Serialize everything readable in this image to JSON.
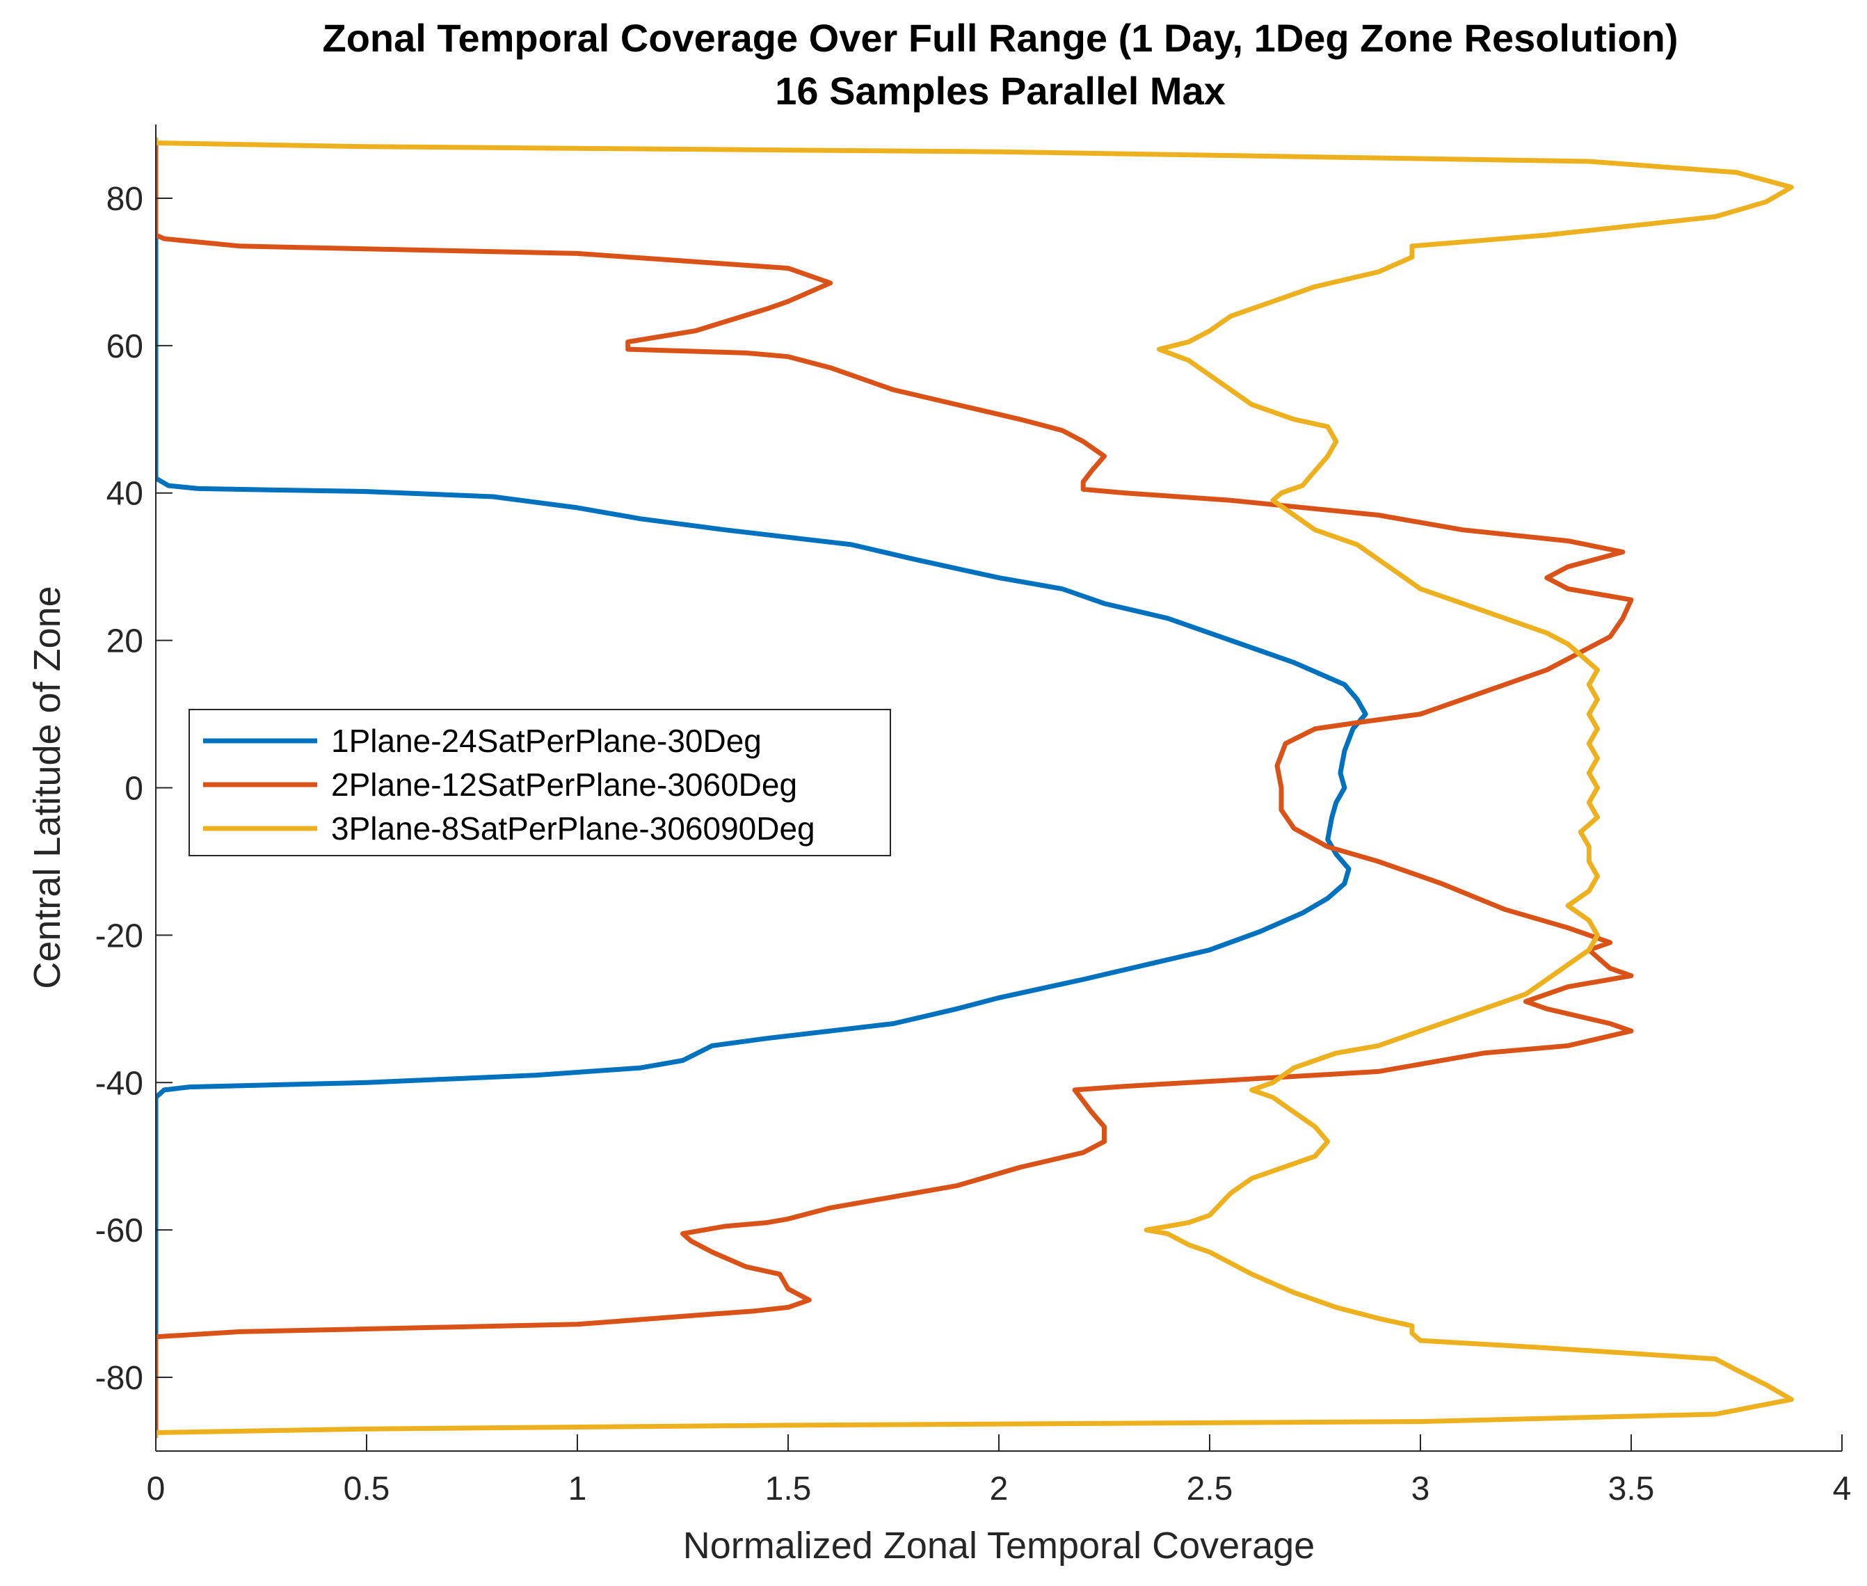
{
  "chart_data": {
    "type": "line",
    "title": "Zonal Temporal Coverage Over Full Range (1 Day, 1Deg Zone Resolution)",
    "subtitle": "16 Samples Parallel Max",
    "xlabel": "Normalized Zonal Temporal Coverage",
    "ylabel": "Central Latitude of Zone",
    "xlim": [
      0,
      4
    ],
    "ylim": [
      -90,
      90
    ],
    "xticks": [
      0,
      0.5,
      1,
      1.5,
      2,
      2.5,
      3,
      3.5,
      4
    ],
    "xtick_labels": [
      "0",
      "0.5",
      "1",
      "1.5",
      "2",
      "2.5",
      "3",
      "3.5",
      "4"
    ],
    "yticks": [
      -80,
      -60,
      -40,
      -20,
      0,
      20,
      40,
      60,
      80
    ],
    "ytick_labels": [
      "-80",
      "-60",
      "-40",
      "-20",
      "0",
      "20",
      "40",
      "60",
      "80"
    ],
    "legend_position": "center-left",
    "series": [
      {
        "name": "1Plane-24SatPerPlane-30Deg",
        "color": "#0072BD",
        "points": [
          [
            0,
            -88
          ],
          [
            0,
            -74
          ],
          [
            0,
            -42
          ],
          [
            0.02,
            -41
          ],
          [
            0.08,
            -40.6
          ],
          [
            0.5,
            -40
          ],
          [
            0.9,
            -39
          ],
          [
            1.15,
            -38
          ],
          [
            1.25,
            -37
          ],
          [
            1.32,
            -35
          ],
          [
            1.45,
            -34
          ],
          [
            1.75,
            -32
          ],
          [
            1.9,
            -30
          ],
          [
            2.0,
            -28.5
          ],
          [
            2.2,
            -26
          ],
          [
            2.35,
            -24
          ],
          [
            2.5,
            -22
          ],
          [
            2.62,
            -19.5
          ],
          [
            2.72,
            -17
          ],
          [
            2.78,
            -15
          ],
          [
            2.82,
            -13
          ],
          [
            2.83,
            -11
          ],
          [
            2.8,
            -9
          ],
          [
            2.78,
            -7
          ],
          [
            2.79,
            -4
          ],
          [
            2.8,
            -2
          ],
          [
            2.82,
            0
          ],
          [
            2.81,
            2
          ],
          [
            2.82,
            5
          ],
          [
            2.84,
            8
          ],
          [
            2.87,
            10
          ],
          [
            2.85,
            12
          ],
          [
            2.82,
            14
          ],
          [
            2.7,
            17
          ],
          [
            2.55,
            20
          ],
          [
            2.4,
            23
          ],
          [
            2.25,
            25
          ],
          [
            2.15,
            27
          ],
          [
            2.0,
            28.5
          ],
          [
            1.8,
            31
          ],
          [
            1.65,
            33
          ],
          [
            1.5,
            34
          ],
          [
            1.35,
            35
          ],
          [
            1.15,
            36.5
          ],
          [
            1.0,
            38
          ],
          [
            0.8,
            39.5
          ],
          [
            0.5,
            40.2
          ],
          [
            0.1,
            40.6
          ],
          [
            0.03,
            41
          ],
          [
            0,
            42
          ],
          [
            0,
            74
          ],
          [
            0,
            88
          ]
        ]
      },
      {
        "name": "2Plane-12SatPerPlane-3060Deg",
        "color": "#D95319",
        "points": [
          [
            0,
            -88
          ],
          [
            0,
            -74.5
          ],
          [
            0.2,
            -73.8
          ],
          [
            1.0,
            -72.8
          ],
          [
            1.3,
            -71.5
          ],
          [
            1.42,
            -71
          ],
          [
            1.5,
            -70.5
          ],
          [
            1.55,
            -69.5
          ],
          [
            1.5,
            -68
          ],
          [
            1.48,
            -66
          ],
          [
            1.4,
            -65
          ],
          [
            1.32,
            -63
          ],
          [
            1.27,
            -61.5
          ],
          [
            1.25,
            -60.5
          ],
          [
            1.3,
            -60
          ],
          [
            1.35,
            -59.5
          ],
          [
            1.45,
            -59
          ],
          [
            1.5,
            -58.5
          ],
          [
            1.6,
            -57
          ],
          [
            1.75,
            -55.5
          ],
          [
            1.9,
            -54
          ],
          [
            2.05,
            -51.5
          ],
          [
            2.2,
            -49.5
          ],
          [
            2.25,
            -48
          ],
          [
            2.25,
            -46
          ],
          [
            2.22,
            -44
          ],
          [
            2.2,
            -42.5
          ],
          [
            2.18,
            -41
          ],
          [
            2.3,
            -40.5
          ],
          [
            2.6,
            -39.5
          ],
          [
            2.9,
            -38.5
          ],
          [
            3.15,
            -36
          ],
          [
            3.35,
            -35
          ],
          [
            3.5,
            -33
          ],
          [
            3.45,
            -32
          ],
          [
            3.3,
            -30
          ],
          [
            3.25,
            -29
          ],
          [
            3.35,
            -27
          ],
          [
            3.5,
            -25.5
          ],
          [
            3.45,
            -24.5
          ],
          [
            3.4,
            -22
          ],
          [
            3.45,
            -21
          ],
          [
            3.35,
            -19
          ],
          [
            3.2,
            -16.5
          ],
          [
            3.05,
            -13
          ],
          [
            2.9,
            -10
          ],
          [
            2.78,
            -8
          ],
          [
            2.7,
            -5.5
          ],
          [
            2.67,
            -3
          ],
          [
            2.67,
            0
          ],
          [
            2.66,
            3
          ],
          [
            2.68,
            6
          ],
          [
            2.75,
            8
          ],
          [
            2.87,
            9
          ],
          [
            3.0,
            10
          ],
          [
            3.15,
            13
          ],
          [
            3.3,
            16
          ],
          [
            3.4,
            19
          ],
          [
            3.45,
            20.5
          ],
          [
            3.48,
            23
          ],
          [
            3.5,
            25.5
          ],
          [
            3.45,
            26
          ],
          [
            3.35,
            27
          ],
          [
            3.3,
            28.5
          ],
          [
            3.35,
            30
          ],
          [
            3.48,
            32
          ],
          [
            3.35,
            33.5
          ],
          [
            3.1,
            35
          ],
          [
            2.9,
            37
          ],
          [
            2.55,
            39
          ],
          [
            2.3,
            40
          ],
          [
            2.2,
            40.5
          ],
          [
            2.2,
            41.5
          ],
          [
            2.22,
            43
          ],
          [
            2.25,
            45
          ],
          [
            2.2,
            47
          ],
          [
            2.15,
            48.5
          ],
          [
            2.05,
            50
          ],
          [
            1.9,
            52
          ],
          [
            1.75,
            54
          ],
          [
            1.6,
            57
          ],
          [
            1.5,
            58.5
          ],
          [
            1.4,
            59
          ],
          [
            1.12,
            59.5
          ],
          [
            1.12,
            60.5
          ],
          [
            1.28,
            62
          ],
          [
            1.45,
            65
          ],
          [
            1.5,
            66
          ],
          [
            1.6,
            68.5
          ],
          [
            1.5,
            70.5
          ],
          [
            1.25,
            71.5
          ],
          [
            1.0,
            72.5
          ],
          [
            0.2,
            73.5
          ],
          [
            0.02,
            74.5
          ],
          [
            0,
            75
          ],
          [
            0,
            88
          ]
        ]
      },
      {
        "name": "3Plane-8SatPerPlane-306090Deg",
        "color": "#EDB120",
        "points": [
          [
            0,
            -88
          ],
          [
            0,
            -87.5
          ],
          [
            0.5,
            -87
          ],
          [
            1.5,
            -86.5
          ],
          [
            3.0,
            -86
          ],
          [
            3.7,
            -85
          ],
          [
            3.88,
            -83
          ],
          [
            3.82,
            -81
          ],
          [
            3.75,
            -79
          ],
          [
            3.7,
            -77.5
          ],
          [
            3.3,
            -76
          ],
          [
            3.0,
            -75
          ],
          [
            2.98,
            -74
          ],
          [
            2.98,
            -73
          ],
          [
            2.9,
            -72
          ],
          [
            2.8,
            -70.5
          ],
          [
            2.7,
            -68.5
          ],
          [
            2.6,
            -66
          ],
          [
            2.5,
            -63
          ],
          [
            2.45,
            -62
          ],
          [
            2.4,
            -60.5
          ],
          [
            2.35,
            -60
          ],
          [
            2.45,
            -59
          ],
          [
            2.5,
            -58
          ],
          [
            2.55,
            -55
          ],
          [
            2.6,
            -53
          ],
          [
            2.7,
            -51
          ],
          [
            2.75,
            -50
          ],
          [
            2.78,
            -48
          ],
          [
            2.75,
            -46
          ],
          [
            2.7,
            -44
          ],
          [
            2.65,
            -42
          ],
          [
            2.6,
            -41
          ],
          [
            2.65,
            -40
          ],
          [
            2.7,
            -38
          ],
          [
            2.8,
            -36
          ],
          [
            2.9,
            -35
          ],
          [
            3.0,
            -33
          ],
          [
            3.1,
            -31
          ],
          [
            3.2,
            -29
          ],
          [
            3.25,
            -28
          ],
          [
            3.3,
            -26
          ],
          [
            3.35,
            -24
          ],
          [
            3.4,
            -22
          ],
          [
            3.42,
            -20
          ],
          [
            3.4,
            -18
          ],
          [
            3.35,
            -16
          ],
          [
            3.4,
            -14
          ],
          [
            3.42,
            -12
          ],
          [
            3.4,
            -10
          ],
          [
            3.4,
            -8
          ],
          [
            3.38,
            -6
          ],
          [
            3.42,
            -4
          ],
          [
            3.4,
            -2
          ],
          [
            3.42,
            0
          ],
          [
            3.4,
            2
          ],
          [
            3.42,
            4
          ],
          [
            3.4,
            6
          ],
          [
            3.42,
            8
          ],
          [
            3.4,
            10
          ],
          [
            3.42,
            12
          ],
          [
            3.4,
            14
          ],
          [
            3.42,
            16
          ],
          [
            3.38,
            18
          ],
          [
            3.35,
            19.5
          ],
          [
            3.3,
            21
          ],
          [
            3.2,
            23
          ],
          [
            3.1,
            25
          ],
          [
            3.0,
            27
          ],
          [
            2.95,
            29
          ],
          [
            2.9,
            31
          ],
          [
            2.85,
            33
          ],
          [
            2.75,
            35
          ],
          [
            2.7,
            37
          ],
          [
            2.65,
            39
          ],
          [
            2.67,
            40
          ],
          [
            2.72,
            41
          ],
          [
            2.75,
            43
          ],
          [
            2.78,
            45
          ],
          [
            2.8,
            47
          ],
          [
            2.78,
            49
          ],
          [
            2.7,
            50
          ],
          [
            2.6,
            52
          ],
          [
            2.55,
            54
          ],
          [
            2.5,
            56
          ],
          [
            2.45,
            58
          ],
          [
            2.38,
            59.5
          ],
          [
            2.45,
            60.5
          ],
          [
            2.5,
            62
          ],
          [
            2.55,
            64
          ],
          [
            2.65,
            66
          ],
          [
            2.75,
            68
          ],
          [
            2.9,
            70
          ],
          [
            2.98,
            72
          ],
          [
            2.98,
            73.5
          ],
          [
            3.3,
            75
          ],
          [
            3.7,
            77.5
          ],
          [
            3.82,
            79.5
          ],
          [
            3.88,
            81.5
          ],
          [
            3.75,
            83.5
          ],
          [
            3.4,
            85
          ],
          [
            2.0,
            86.3
          ],
          [
            0.5,
            87
          ],
          [
            0,
            87.5
          ],
          [
            0,
            88
          ]
        ]
      }
    ]
  }
}
